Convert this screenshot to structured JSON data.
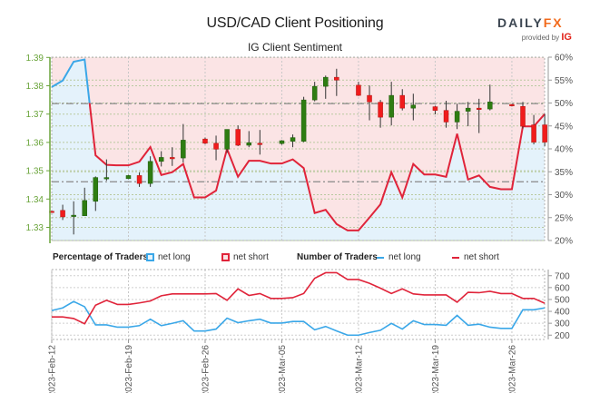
{
  "header": {
    "title": "USD/CAD Client Positioning",
    "subtitle": "IG Client Sentiment",
    "logo": {
      "brand_a": "DAILY",
      "brand_b": "FX",
      "provided_by": "provided by",
      "ig": "IG"
    }
  },
  "legend": {
    "percentage_heading": "Percentage of Traders",
    "pct_net_long": "net long",
    "pct_net_short": "net short",
    "number_heading": "Number of Traders",
    "num_net_long": "net long",
    "num_net_short": "net short"
  },
  "colors": {
    "net_long": "#3aa7e8",
    "net_short": "#e0243a",
    "long_fill": "#e4f2fb",
    "short_fill": "#fbe4e5",
    "candle_up": "#2e7d12",
    "candle_down": "#f01c1c",
    "price_axis": "#6aa43a"
  },
  "chart_data": [
    {
      "type": "candlestick+line",
      "title": "USD/CAD Client Positioning",
      "subtitle": "IG Client Sentiment",
      "x_ticks": [
        "2023-Feb-12",
        "2023-Feb-19",
        "2023-Feb-26",
        "2023-Mar-05",
        "2023-Mar-12",
        "2023-Mar-19",
        "2023-Mar-26"
      ],
      "x_tick_days": [
        0,
        7,
        14,
        21,
        28,
        35,
        42
      ],
      "price_axis": {
        "ticks": [
          "1.33",
          "1.34",
          "1.35",
          "1.36",
          "1.37",
          "1.38",
          "1.39"
        ],
        "ylim": [
          1.3255,
          1.39
        ]
      },
      "pct_axis": {
        "ticks": [
          "20%",
          "25%",
          "30%",
          "35%",
          "40%",
          "45%",
          "50%",
          "55%",
          "60%"
        ],
        "ylim": [
          20,
          60
        ]
      },
      "reference_lines": [
        1.3737,
        1.3461
      ],
      "candles_ohlc": [
        [
          0,
          1.3357,
          1.3358,
          1.3352,
          1.3356
        ],
        [
          1,
          1.336,
          1.338,
          1.3326,
          1.3337
        ],
        [
          2,
          1.3341,
          1.3392,
          1.3275,
          1.3343
        ],
        [
          3,
          1.3341,
          1.344,
          1.3341,
          1.3395
        ],
        [
          4,
          1.3392,
          1.348,
          1.3358,
          1.3476
        ],
        [
          5,
          1.3475,
          1.354,
          1.3465,
          1.3476
        ],
        [
          7,
          1.3472,
          1.3485,
          1.347,
          1.3483
        ],
        [
          8,
          1.3483,
          1.3494,
          1.3443,
          1.3455
        ],
        [
          9,
          1.3455,
          1.3551,
          1.3443,
          1.3533
        ],
        [
          10,
          1.3533,
          1.3569,
          1.3515,
          1.3547
        ],
        [
          11,
          1.3547,
          1.3583,
          1.3517,
          1.3545
        ],
        [
          12,
          1.3545,
          1.3665,
          1.3529,
          1.3608
        ],
        [
          14,
          1.3612,
          1.3617,
          1.3594,
          1.3597
        ],
        [
          15,
          1.3597,
          1.3624,
          1.3537,
          1.3576
        ],
        [
          16,
          1.3576,
          1.3646,
          1.3563,
          1.3646
        ],
        [
          17,
          1.3646,
          1.366,
          1.3587,
          1.359
        ],
        [
          18,
          1.359,
          1.364,
          1.3583,
          1.3599
        ],
        [
          19,
          1.3597,
          1.3644,
          1.3557,
          1.3594
        ],
        [
          21,
          1.3596,
          1.3608,
          1.3592,
          1.3606
        ],
        [
          22,
          1.3604,
          1.3628,
          1.3583,
          1.3617
        ],
        [
          23,
          1.3604,
          1.3761,
          1.3601,
          1.375
        ],
        [
          24,
          1.375,
          1.3814,
          1.3745,
          1.3798
        ],
        [
          25,
          1.3798,
          1.3836,
          1.3754,
          1.383
        ],
        [
          26,
          1.383,
          1.386,
          1.3764,
          1.382
        ],
        [
          28,
          1.3802,
          1.3814,
          1.3764,
          1.3766
        ],
        [
          29,
          1.3766,
          1.3801,
          1.3678,
          1.3743
        ],
        [
          30,
          1.3742,
          1.375,
          1.3652,
          1.3689
        ],
        [
          31,
          1.3689,
          1.3814,
          1.366,
          1.3766
        ],
        [
          32,
          1.3766,
          1.3788,
          1.3713,
          1.3721
        ],
        [
          33,
          1.3721,
          1.3772,
          1.3678,
          1.3732
        ],
        [
          35,
          1.3726,
          1.3729,
          1.3699,
          1.3713
        ],
        [
          36,
          1.3713,
          1.3747,
          1.3652,
          1.3672
        ],
        [
          37,
          1.3672,
          1.3737,
          1.3647,
          1.371
        ],
        [
          38,
          1.371,
          1.3743,
          1.3657,
          1.3721
        ],
        [
          39,
          1.3721,
          1.3754,
          1.3633,
          1.3718
        ],
        [
          40,
          1.3718,
          1.3804,
          1.3713,
          1.3743
        ],
        [
          42,
          1.3734,
          1.3736,
          1.3727,
          1.3729
        ],
        [
          43,
          1.3727,
          1.3743,
          1.3649,
          1.3657
        ],
        [
          44,
          1.3662,
          1.3697,
          1.3593,
          1.3601
        ],
        [
          45,
          1.3662,
          1.37,
          1.3587,
          1.3601
        ]
      ],
      "net_long_pct": [
        [
          0,
          53.5
        ],
        [
          1,
          54.9
        ],
        [
          2,
          59
        ],
        [
          3,
          59.5
        ],
        [
          4,
          38.6
        ],
        [
          5,
          36.5
        ],
        [
          6,
          36.4
        ],
        [
          7,
          36.4
        ],
        [
          8,
          37.2
        ],
        [
          9,
          40.4
        ],
        [
          10,
          34.3
        ],
        [
          11,
          34.9
        ],
        [
          12,
          36.7
        ],
        [
          13,
          29.4
        ],
        [
          14,
          29.4
        ],
        [
          15,
          30.9
        ],
        [
          16,
          40
        ],
        [
          17,
          33.9
        ],
        [
          18,
          37.4
        ],
        [
          19,
          37.4
        ],
        [
          20,
          36.8
        ],
        [
          21,
          36.8
        ],
        [
          22,
          37.7
        ],
        [
          23,
          35.8
        ],
        [
          24,
          26
        ],
        [
          25,
          26.7
        ],
        [
          26,
          23.6
        ],
        [
          27,
          22.2
        ],
        [
          28,
          22.2
        ],
        [
          29,
          25
        ],
        [
          30,
          27.9
        ],
        [
          31,
          34.9
        ],
        [
          32,
          29.4
        ],
        [
          33,
          36.7
        ],
        [
          34,
          34.4
        ],
        [
          35,
          34.4
        ],
        [
          36,
          33.9
        ],
        [
          37,
          43.3
        ],
        [
          38,
          33.3
        ],
        [
          39,
          34.2
        ],
        [
          40,
          31.7
        ],
        [
          41,
          31.2
        ],
        [
          42,
          31.2
        ],
        [
          43,
          44.9
        ],
        [
          44,
          44.9
        ],
        [
          45,
          47.6
        ]
      ]
    },
    {
      "type": "line",
      "title": "Number of Traders",
      "y_ticks": [
        "200",
        "300",
        "400",
        "500",
        "600",
        "700"
      ],
      "ylim": [
        150,
        745
      ],
      "series": [
        {
          "name": "net long",
          "values": [
            407,
            429,
            483,
            439,
            286,
            286,
            267,
            267,
            280,
            334,
            280,
            299,
            321,
            235,
            235,
            251,
            343,
            305,
            321,
            334,
            302,
            302,
            315,
            315,
            245,
            273,
            235,
            200,
            200,
            222,
            241,
            299,
            251,
            321,
            289,
            289,
            283,
            366,
            283,
            292,
            267,
            257,
            257,
            413,
            413,
            429
          ]
        },
        {
          "name": "net short",
          "values": [
            353,
            353,
            340,
            296,
            452,
            493,
            458,
            458,
            471,
            487,
            531,
            547,
            547,
            547,
            547,
            550,
            493,
            589,
            534,
            550,
            509,
            509,
            515,
            550,
            678,
            725,
            725,
            668,
            668,
            636,
            595,
            550,
            589,
            547,
            538,
            538,
            538,
            477,
            560,
            557,
            569,
            550,
            550,
            509,
            509,
            468
          ]
        }
      ]
    }
  ]
}
